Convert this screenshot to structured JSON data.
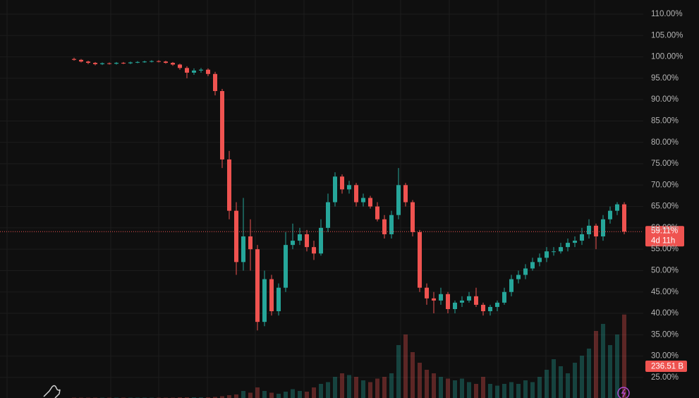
{
  "chart_data": {
    "type": "candlestick",
    "ylim": [
      20.2,
      113.3
    ],
    "yticks": [
      {
        "value": 25,
        "label": "25.00%"
      },
      {
        "value": 30,
        "label": "30.00%"
      },
      {
        "value": 35,
        "label": "35.00%"
      },
      {
        "value": 40,
        "label": "40.00%"
      },
      {
        "value": 45,
        "label": "45.00%"
      },
      {
        "value": 50,
        "label": "50.00%"
      },
      {
        "value": 55,
        "label": "55.00%"
      },
      {
        "value": 60,
        "label": "60.00%"
      },
      {
        "value": 65,
        "label": "65.00%"
      },
      {
        "value": 70,
        "label": "70.00%"
      },
      {
        "value": 75,
        "label": "75.00%"
      },
      {
        "value": 80,
        "label": "80.00%"
      },
      {
        "value": 85,
        "label": "85.00%"
      },
      {
        "value": 90,
        "label": "90.00%"
      },
      {
        "value": 95,
        "label": "95.00%"
      },
      {
        "value": 100,
        "label": "100.00%"
      },
      {
        "value": 105,
        "label": "105.00%"
      },
      {
        "value": 110,
        "label": "110.00%"
      }
    ],
    "grid": true,
    "up_color": "#26a69a",
    "down_color": "#ef5350",
    "open": [
      99.5,
      99.3,
      98.9,
      98.6,
      98.3,
      98.5,
      98.4,
      98.6,
      98.5,
      98.7,
      98.8,
      98.9,
      99.0,
      98.9,
      98.6,
      98.2,
      97.4,
      96.3,
      96.8,
      97.0,
      96.0,
      92.0,
      76.0,
      64.0,
      52.0,
      58.0,
      55.0,
      38.0,
      48.0,
      40.5,
      46.0,
      56.0,
      57.0,
      58.5,
      55.5,
      54.0,
      60.0,
      66.0,
      72.0,
      69.0,
      70.0,
      66.0,
      67.0,
      65.0,
      62.0,
      58.5,
      63.0,
      70.0,
      66.0,
      59.0,
      46.0,
      43.5,
      43.0,
      44.5,
      41.0,
      42.5,
      43.0,
      44.0,
      42.0,
      40.5,
      41.5,
      42.5,
      45.0,
      48.0,
      49.0,
      50.5,
      52.0,
      53.0,
      54.5,
      54.5,
      55.5,
      56.5,
      57.0,
      58.5,
      60.5,
      58.0,
      62.0,
      64.0,
      65.5
    ],
    "high": [
      99.8,
      99.5,
      99.1,
      98.8,
      98.7,
      98.7,
      98.8,
      98.8,
      98.9,
      99.0,
      99.1,
      99.2,
      99.2,
      99.1,
      98.8,
      98.4,
      97.8,
      97.3,
      97.4,
      97.3,
      96.5,
      92.5,
      78,
      66,
      67,
      62,
      56,
      50,
      49,
      47,
      59,
      61,
      60,
      59.5,
      57,
      62,
      68,
      73,
      72.5,
      71,
      70.5,
      68,
      67.5,
      66,
      63,
      64,
      74,
      70.5,
      66.5,
      59.5,
      47,
      45,
      46,
      45,
      43,
      44,
      45,
      46,
      42.5,
      42,
      43,
      46,
      49,
      50,
      51.5,
      53,
      54,
      55.5,
      55.5,
      56.5,
      57.5,
      58,
      60,
      62,
      61,
      63,
      65,
      66,
      66
    ],
    "low": [
      99.1,
      98.7,
      98.3,
      98.0,
      98.1,
      98.2,
      98.2,
      98.3,
      98.3,
      98.5,
      98.6,
      98.7,
      98.7,
      98.4,
      97.9,
      97.0,
      95.0,
      95.8,
      96.3,
      95.5,
      91,
      74,
      62,
      49,
      50,
      50,
      36,
      37,
      39.5,
      39.5,
      45,
      55,
      56,
      54.5,
      52.5,
      53.5,
      59,
      65,
      68,
      68,
      65,
      65,
      64.5,
      61.5,
      57.5,
      57.5,
      62,
      65,
      58,
      45,
      42,
      40,
      42,
      40,
      40,
      41.5,
      42.5,
      41.5,
      39.5,
      39.5,
      40.5,
      42,
      44,
      47,
      48,
      50,
      51,
      52,
      53.5,
      54,
      54.5,
      55.5,
      56,
      57.5,
      55,
      57,
      61,
      63,
      58.5
    ],
    "close": [
      99.3,
      98.9,
      98.6,
      98.3,
      98.5,
      98.4,
      98.6,
      98.5,
      98.7,
      98.8,
      98.9,
      99.0,
      98.9,
      98.6,
      98.2,
      97.4,
      96.3,
      96.8,
      97.0,
      96.0,
      92.0,
      76.0,
      64.0,
      52.0,
      58.0,
      55.0,
      38.0,
      48.0,
      40.5,
      46.0,
      56.0,
      57.0,
      58.5,
      55.5,
      54.0,
      60.0,
      66.0,
      72.0,
      69.0,
      70.0,
      66.0,
      67.0,
      65.0,
      62.0,
      58.5,
      63.0,
      70.0,
      66.0,
      59.0,
      46.0,
      43.5,
      43.0,
      44.5,
      41.0,
      42.5,
      43.0,
      44.0,
      42.0,
      40.5,
      41.5,
      42.5,
      45.0,
      48.0,
      49.0,
      50.5,
      52.0,
      53.0,
      54.5,
      54.5,
      55.5,
      56.5,
      57.0,
      58.5,
      60.5,
      58.0,
      62.0,
      64.0,
      65.5,
      59.11
    ],
    "price_badge": "59.11%",
    "countdown": "4d 11h",
    "volume": [
      1,
      1,
      1,
      1,
      1,
      1,
      1,
      1,
      1,
      1,
      1,
      1,
      1,
      1,
      1,
      2,
      2,
      2,
      2,
      2,
      3,
      5,
      8,
      10,
      20,
      15,
      30,
      20,
      15,
      12,
      18,
      25,
      20,
      18,
      30,
      40,
      45,
      60,
      70,
      65,
      60,
      50,
      45,
      55,
      60,
      70,
      150,
      180,
      130,
      100,
      80,
      70,
      60,
      55,
      50,
      55,
      45,
      40,
      60,
      40,
      35,
      40,
      45,
      40,
      50,
      45,
      60,
      80,
      110,
      90,
      70,
      100,
      120,
      140,
      190,
      210,
      150,
      180,
      236.51
    ],
    "volume_lim": [
      0,
      260
    ],
    "volume_badge": "236.51 B"
  }
}
